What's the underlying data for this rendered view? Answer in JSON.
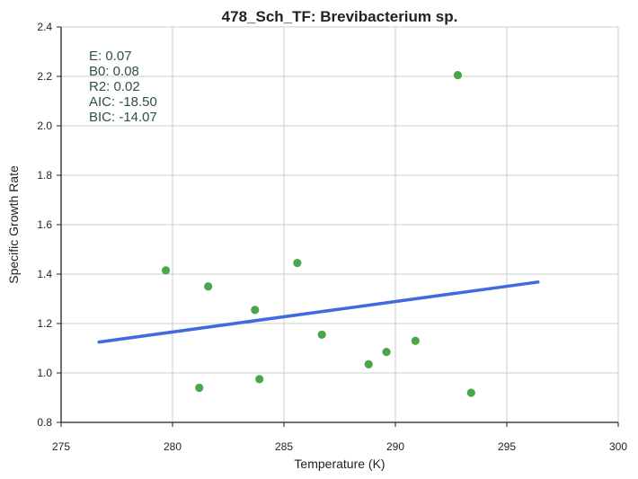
{
  "chart_data": {
    "type": "scatter",
    "title": "478_Sch_TF: Brevibacterium sp.",
    "xlabel": "Temperature (K)",
    "ylabel": "Specific Growth Rate",
    "xlim": [
      275,
      300
    ],
    "ylim": [
      0.8,
      2.4
    ],
    "xticks": [
      "275",
      "280",
      "285",
      "290",
      "295",
      "300"
    ],
    "yticks": [
      "0.8",
      "1.0",
      "1.2",
      "1.4",
      "1.6",
      "1.8",
      "2.0",
      "2.2",
      "2.4"
    ],
    "grid": true,
    "points": [
      {
        "x": 279.7,
        "y": 1.415
      },
      {
        "x": 281.2,
        "y": 0.94
      },
      {
        "x": 281.6,
        "y": 1.35
      },
      {
        "x": 283.7,
        "y": 1.255
      },
      {
        "x": 283.9,
        "y": 0.975
      },
      {
        "x": 285.6,
        "y": 1.445
      },
      {
        "x": 286.7,
        "y": 1.155
      },
      {
        "x": 288.8,
        "y": 1.035
      },
      {
        "x": 289.6,
        "y": 1.085
      },
      {
        "x": 290.9,
        "y": 1.13
      },
      {
        "x": 292.8,
        "y": 2.205
      },
      {
        "x": 293.4,
        "y": 0.92
      }
    ],
    "fit_line": {
      "x": [
        276.7,
        296.4
      ],
      "y": [
        1.125,
        1.368
      ]
    },
    "annotations": [
      "E:  0.07",
      "B0:  0.08",
      "R2:  0.02",
      "AIC: -18.50",
      "BIC: -14.07"
    ],
    "colors": {
      "points": "#4aa64a",
      "fit_line": "#4169e1",
      "annotation_text": "#2f4f4f",
      "grid": "#cccccc",
      "axis": "#222222"
    }
  }
}
